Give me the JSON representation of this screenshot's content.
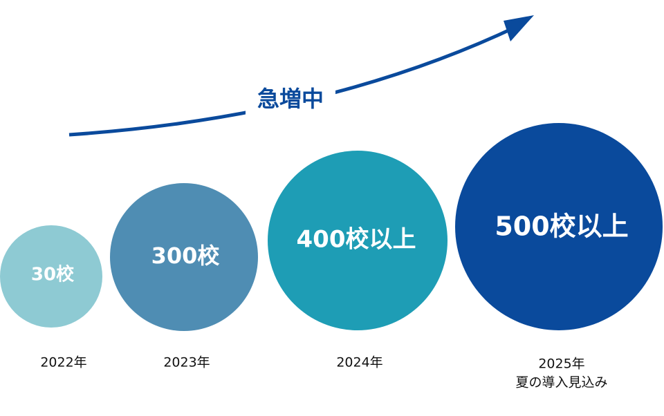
{
  "arrow_label": "急増中",
  "items": [
    {
      "label": "30校",
      "year": "2022年"
    },
    {
      "label": "300校",
      "year": "2023年"
    },
    {
      "label": "400校以上",
      "year": "2024年"
    },
    {
      "label": "500校以上",
      "year": "2025年",
      "note": "夏の導入見込み"
    }
  ]
}
